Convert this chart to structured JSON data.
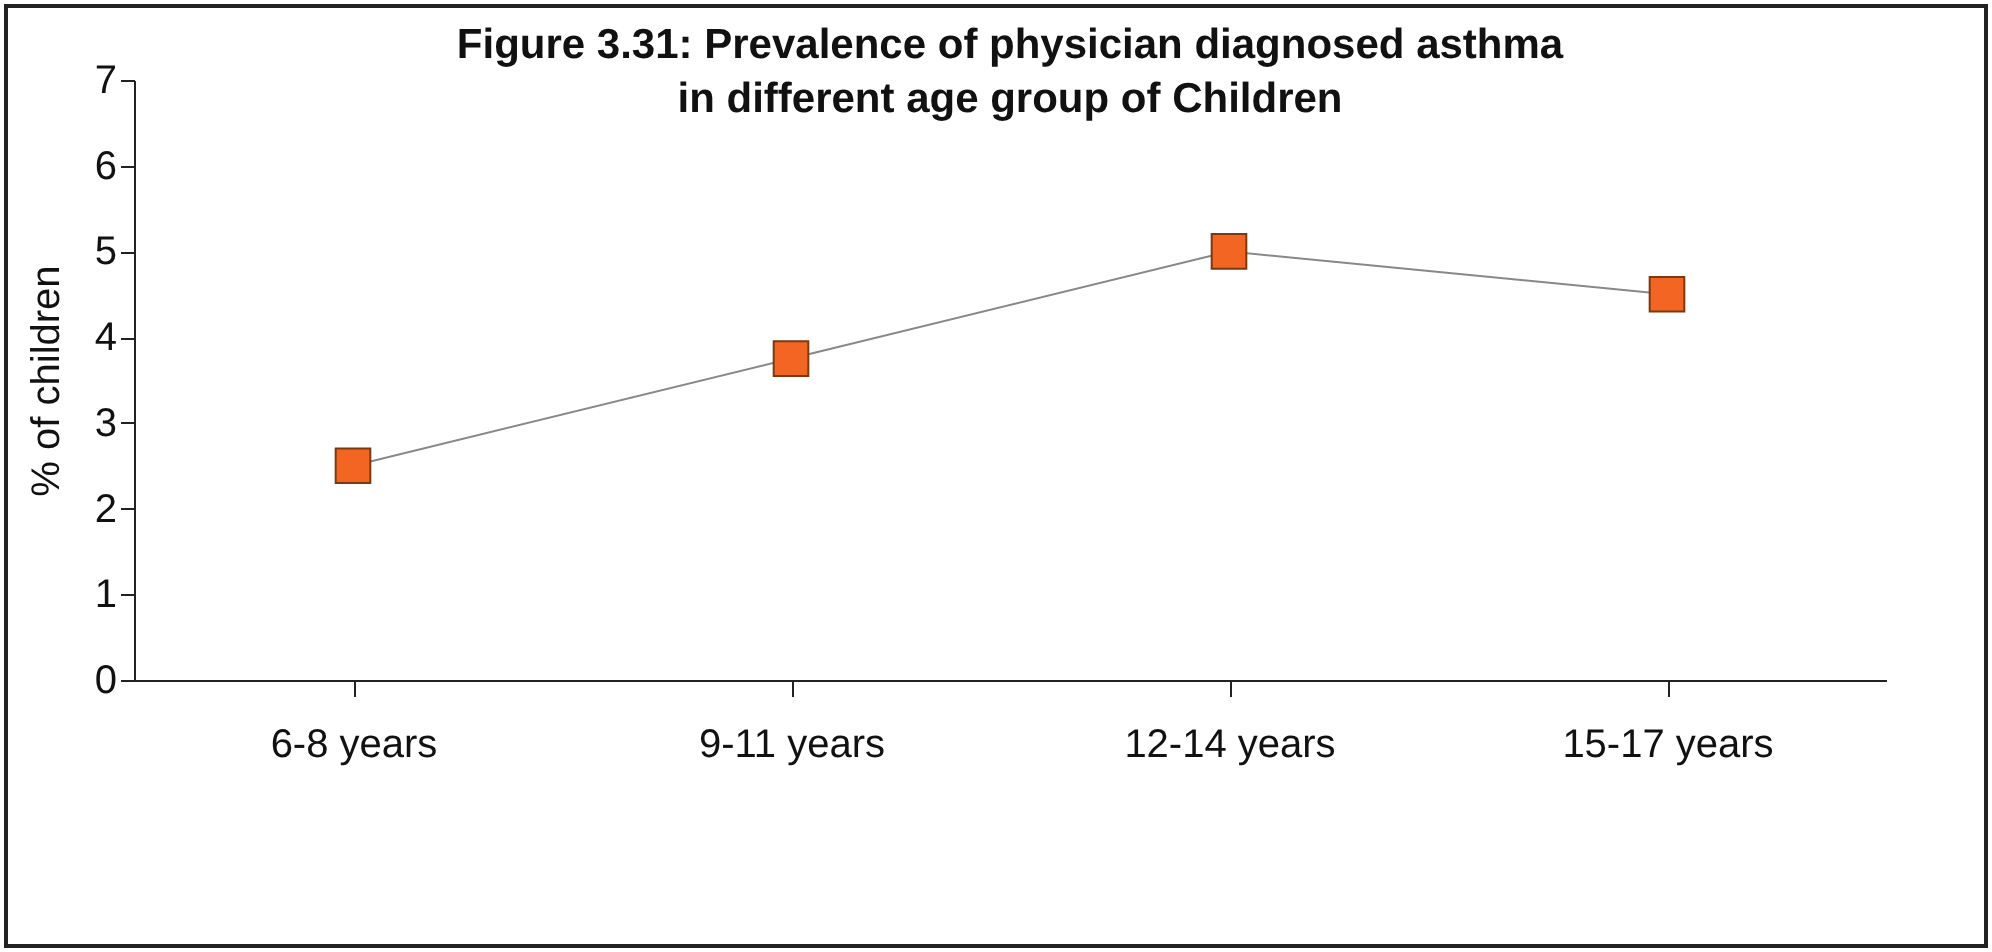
{
  "chart_data": {
    "type": "line",
    "title": "Figure 3.31: Prevalence of physician diagnosed asthma in different age group of Children",
    "ylabel": "% of children",
    "categories": [
      "6-8 years",
      "9-11 years",
      "12-14 years",
      "15-17 years"
    ],
    "series": [
      {
        "color": "#f26522",
        "values": [
          2.5,
          3.75,
          5.0,
          4.5
        ]
      }
    ],
    "ylim": [
      0,
      7
    ],
    "yticks": [
      0,
      1,
      2,
      3,
      4,
      5,
      6,
      7
    ],
    "marker": "square",
    "grid": false,
    "legend": false
  }
}
